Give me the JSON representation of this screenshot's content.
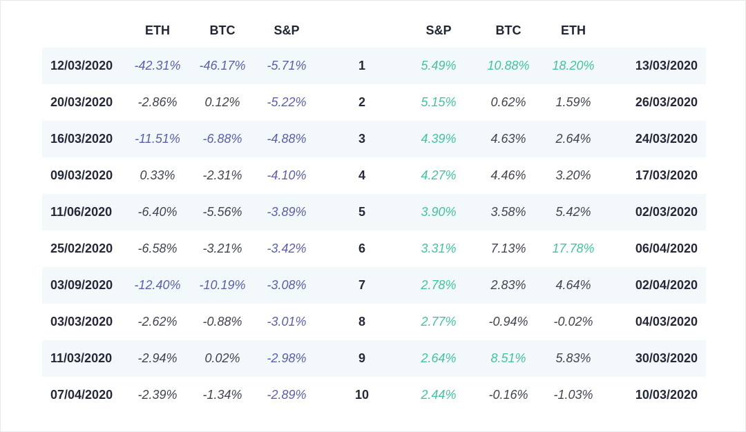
{
  "colors": {
    "highlight_negative": "#5a5fa8",
    "highlight_positive": "#44c1a2",
    "normal_value": "#3f4451",
    "striped_row": "#f3f9fb"
  },
  "header": {
    "left": [
      "ETH",
      "BTC",
      "S&P"
    ],
    "right": [
      "S&P",
      "BTC",
      "ETH"
    ]
  },
  "chart_data": {
    "type": "table",
    "columns": [
      "",
      "ETH",
      "BTC",
      "S&P",
      "",
      "S&P",
      "BTC",
      "ETH",
      ""
    ],
    "rows": [
      {
        "rank": "1",
        "left_date": "12/03/2020",
        "eth_l": "-42.31%",
        "btc_l": "-46.17%",
        "sp_l": "-5.71%",
        "sp_r": "5.49%",
        "btc_r": "10.88%",
        "eth_r": "18.20%",
        "right_date": "13/03/2020",
        "hl": {
          "eth_l": true,
          "btc_l": true,
          "sp_l": true,
          "sp_r": true,
          "btc_r": true,
          "eth_r": true
        }
      },
      {
        "rank": "2",
        "left_date": "20/03/2020",
        "eth_l": "-2.86%",
        "btc_l": "0.12%",
        "sp_l": "-5.22%",
        "sp_r": "5.15%",
        "btc_r": "0.62%",
        "eth_r": "1.59%",
        "right_date": "26/03/2020",
        "hl": {
          "eth_l": false,
          "btc_l": false,
          "sp_l": true,
          "sp_r": true,
          "btc_r": false,
          "eth_r": false
        }
      },
      {
        "rank": "3",
        "left_date": "16/03/2020",
        "eth_l": "-11.51%",
        "btc_l": "-6.88%",
        "sp_l": "-4.88%",
        "sp_r": "4.39%",
        "btc_r": "4.63%",
        "eth_r": "2.64%",
        "right_date": "24/03/2020",
        "hl": {
          "eth_l": true,
          "btc_l": true,
          "sp_l": true,
          "sp_r": true,
          "btc_r": false,
          "eth_r": false
        }
      },
      {
        "rank": "4",
        "left_date": "09/03/2020",
        "eth_l": "0.33%",
        "btc_l": "-2.31%",
        "sp_l": "-4.10%",
        "sp_r": "4.27%",
        "btc_r": "4.46%",
        "eth_r": "3.20%",
        "right_date": "17/03/2020",
        "hl": {
          "eth_l": false,
          "btc_l": false,
          "sp_l": true,
          "sp_r": true,
          "btc_r": false,
          "eth_r": false
        }
      },
      {
        "rank": "5",
        "left_date": "11/06/2020",
        "eth_l": "-6.40%",
        "btc_l": "-5.56%",
        "sp_l": "-3.89%",
        "sp_r": "3.90%",
        "btc_r": "3.58%",
        "eth_r": "5.42%",
        "right_date": "02/03/2020",
        "hl": {
          "eth_l": false,
          "btc_l": false,
          "sp_l": true,
          "sp_r": true,
          "btc_r": false,
          "eth_r": false
        }
      },
      {
        "rank": "6",
        "left_date": "25/02/2020",
        "eth_l": "-6.58%",
        "btc_l": "-3.21%",
        "sp_l": "-3.42%",
        "sp_r": "3.31%",
        "btc_r": "7.13%",
        "eth_r": "17.78%",
        "right_date": "06/04/2020",
        "hl": {
          "eth_l": false,
          "btc_l": false,
          "sp_l": true,
          "sp_r": true,
          "btc_r": false,
          "eth_r": true
        }
      },
      {
        "rank": "7",
        "left_date": "03/09/2020",
        "eth_l": "-12.40%",
        "btc_l": "-10.19%",
        "sp_l": "-3.08%",
        "sp_r": "2.78%",
        "btc_r": "2.83%",
        "eth_r": "4.64%",
        "right_date": "02/04/2020",
        "hl": {
          "eth_l": true,
          "btc_l": true,
          "sp_l": true,
          "sp_r": true,
          "btc_r": false,
          "eth_r": false
        }
      },
      {
        "rank": "8",
        "left_date": "03/03/2020",
        "eth_l": "-2.62%",
        "btc_l": "-0.88%",
        "sp_l": "-3.01%",
        "sp_r": "2.77%",
        "btc_r": "-0.94%",
        "eth_r": "-0.02%",
        "right_date": "04/03/2020",
        "hl": {
          "eth_l": false,
          "btc_l": false,
          "sp_l": true,
          "sp_r": true,
          "btc_r": false,
          "eth_r": false
        }
      },
      {
        "rank": "9",
        "left_date": "11/03/2020",
        "eth_l": "-2.94%",
        "btc_l": "0.02%",
        "sp_l": "-2.98%",
        "sp_r": "2.64%",
        "btc_r": "8.51%",
        "eth_r": "5.83%",
        "right_date": "30/03/2020",
        "hl": {
          "eth_l": false,
          "btc_l": false,
          "sp_l": true,
          "sp_r": true,
          "btc_r": true,
          "eth_r": false
        }
      },
      {
        "rank": "10",
        "left_date": "07/04/2020",
        "eth_l": "-2.39%",
        "btc_l": "-1.34%",
        "sp_l": "-2.89%",
        "sp_r": "2.44%",
        "btc_r": "-0.16%",
        "eth_r": "-1.03%",
        "right_date": "10/03/2020",
        "hl": {
          "eth_l": false,
          "btc_l": false,
          "sp_l": true,
          "sp_r": true,
          "btc_r": false,
          "eth_r": false
        }
      }
    ]
  }
}
